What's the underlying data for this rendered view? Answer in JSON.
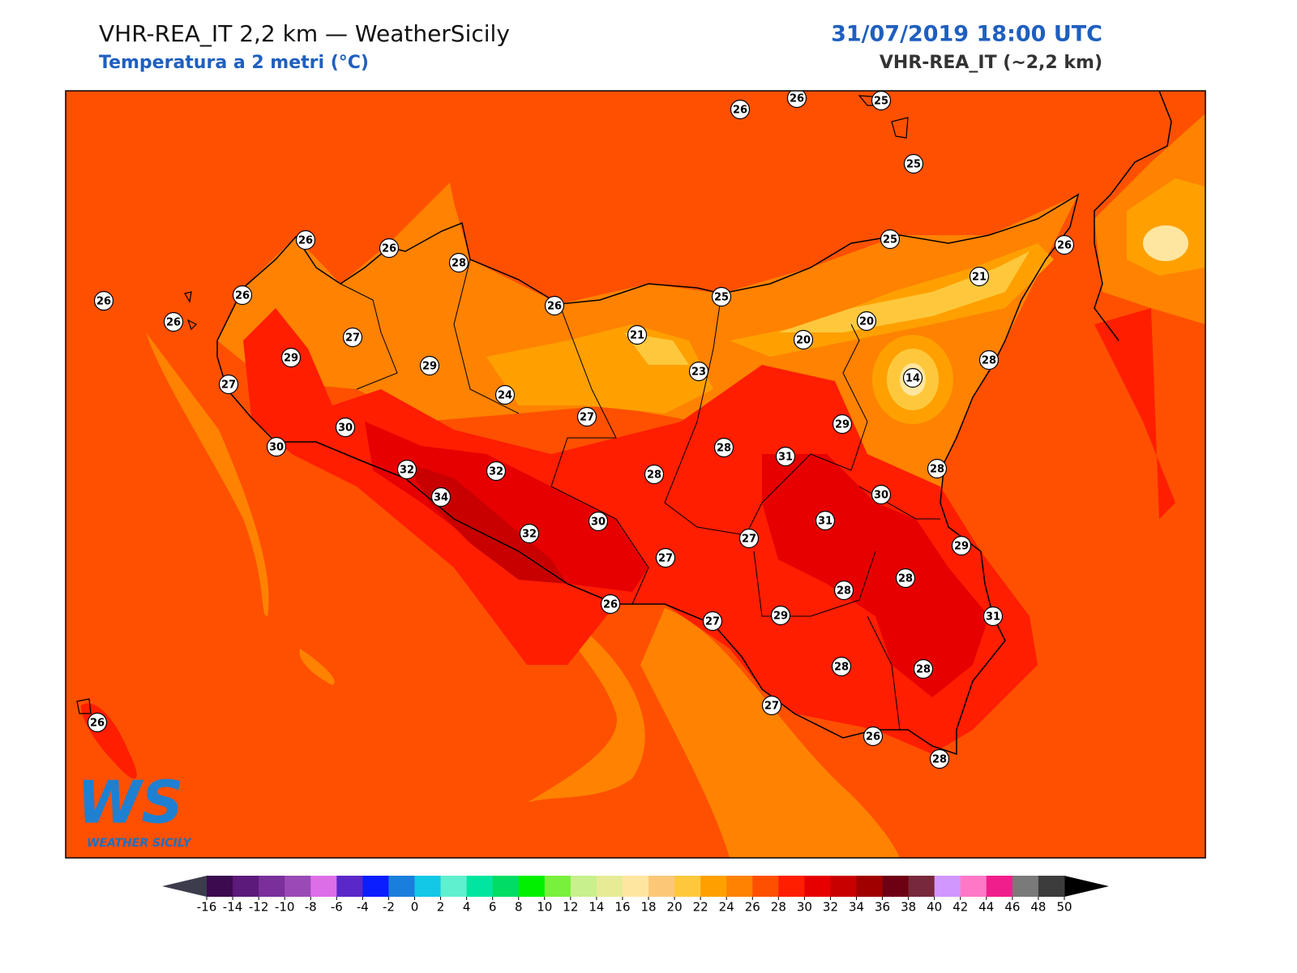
{
  "header": {
    "title": "VHR-REA_IT 2,2 km — WeatherSicily",
    "subtitle": "Temperatura a 2 metri (°C)",
    "datetime": "31/07/2019 18:00 UTC",
    "model": "VHR-REA_IT (~2,2 km)"
  },
  "stations": [
    26,
    26,
    25,
    25,
    26,
    26,
    28,
    26,
    26,
    26,
    25,
    26,
    21,
    26,
    25,
    21,
    20,
    20,
    27,
    29,
    29,
    23,
    28,
    14,
    27,
    24,
    27,
    30,
    30,
    29,
    28,
    31,
    32,
    32,
    28,
    28,
    30,
    34,
    31,
    30,
    32,
    27,
    27,
    29,
    28,
    28,
    26,
    29,
    31,
    27,
    28,
    28,
    27,
    26,
    26,
    28
  ],
  "colorbar": {
    "ticks": [
      -16,
      -14,
      -12,
      -10,
      -8,
      -6,
      -4,
      -2,
      0,
      2,
      4,
      6,
      8,
      10,
      12,
      14,
      16,
      18,
      20,
      22,
      24,
      26,
      28,
      30,
      32,
      34,
      36,
      38,
      40,
      42,
      44,
      46,
      48,
      50
    ],
    "colors": [
      "#3b0a4f",
      "#5c1a7a",
      "#7a2f9a",
      "#9a4ab4",
      "#dc6fe8",
      "#5a28c8",
      "#0a1eff",
      "#1a7fdc",
      "#12c8e6",
      "#5ff0d0",
      "#00e6a0",
      "#00dc64",
      "#00f000",
      "#78f03c",
      "#c8f08c",
      "#e6eb96",
      "#ffe6a0",
      "#fcc878",
      "#ffc83c",
      "#ffa000",
      "#ff8200",
      "#ff5000",
      "#ff1e00",
      "#e60000",
      "#c80000",
      "#a00000",
      "#6e0014",
      "#78283c",
      "#d296ff",
      "#ff78c8",
      "#f01e8c",
      "#7a7a7a",
      "#3c3c3c"
    ],
    "under_color": "#3c3c4c",
    "over_color": "#000000"
  },
  "logo": {
    "mark": "WS",
    "name": "WEATHER SICILY"
  }
}
